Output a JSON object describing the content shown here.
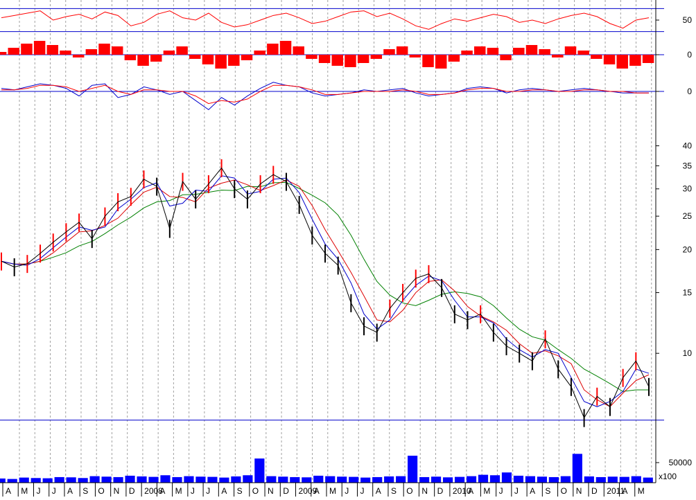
{
  "colors": {
    "price_up": "#ff0000",
    "price_down": "#000000",
    "ma_short": "#0000cc",
    "ma_mid": "#dd0000",
    "ma_long": "#008000",
    "reference_line": "#0000cc",
    "volume": "#0000ff",
    "oscillator": "#ff0000",
    "grid": "#a0a0a0"
  },
  "chart_data": [
    {
      "type": "line",
      "panel": "oscillator",
      "ytick_labels": [
        "50"
      ],
      "reference_levels": [
        30,
        70
      ],
      "series": [
        {
          "values": [
            54,
            58,
            62,
            66,
            50,
            56,
            60,
            52,
            64,
            58,
            40,
            46,
            60,
            66,
            54,
            50,
            62,
            46,
            38,
            42,
            50,
            58,
            62,
            54,
            44,
            48,
            56,
            64,
            66,
            56,
            62,
            52,
            40,
            34,
            44,
            52,
            48,
            54,
            60,
            56,
            46,
            50,
            44,
            52,
            58,
            62,
            56,
            44,
            36,
            50,
            54
          ]
        }
      ]
    },
    {
      "type": "bar",
      "panel": "histogram",
      "ytick_labels": [
        "0"
      ],
      "series": [
        {
          "values": [
            0.2,
            0.5,
            0.8,
            1.0,
            0.7,
            0.3,
            -0.2,
            0.4,
            0.8,
            0.6,
            -0.4,
            -0.8,
            -0.5,
            0.3,
            0.6,
            -0.3,
            -0.7,
            -1.0,
            -0.8,
            -0.4,
            0.3,
            0.8,
            1.0,
            0.6,
            -0.3,
            -0.6,
            -0.8,
            -0.9,
            -0.6,
            -0.3,
            0.4,
            0.6,
            -0.2,
            -0.9,
            -1.0,
            -0.5,
            0.3,
            0.6,
            0.5,
            -0.4,
            0.5,
            0.7,
            0.4,
            -0.2,
            0.6,
            0.3,
            -0.3,
            -0.7,
            -1.0,
            -0.8,
            -0.6
          ]
        }
      ]
    },
    {
      "type": "line",
      "panel": "momentum",
      "ytick_labels": [
        "0"
      ],
      "series": [
        {
          "values": [
            0.2,
            0.1,
            0.3,
            0.5,
            0.4,
            0.2,
            -0.3,
            0.4,
            0.5,
            -0.4,
            -0.2,
            0.3,
            0.1,
            -0.2,
            0.0,
            -0.6,
            -1.2,
            -0.4,
            -0.9,
            -0.3,
            0.2,
            0.6,
            0.4,
            0.3,
            -0.1,
            -0.3,
            -0.2,
            -0.1,
            0.1,
            0.0,
            0.1,
            0.2,
            -0.1,
            -0.3,
            -0.2,
            -0.1,
            0.2,
            0.3,
            0.2,
            -0.1,
            0.1,
            0.2,
            0.1,
            0.0,
            0.1,
            0.2,
            0.1,
            0.0,
            -0.1,
            -0.1,
            -0.1
          ]
        },
        {
          "values": [
            0.1,
            0.1,
            0.2,
            0.4,
            0.4,
            0.3,
            0.0,
            0.2,
            0.4,
            0.0,
            -0.2,
            0.1,
            0.1,
            0.0,
            0.0,
            -0.3,
            -0.8,
            -0.6,
            -0.7,
            -0.5,
            0.0,
            0.4,
            0.4,
            0.3,
            0.1,
            -0.2,
            -0.2,
            -0.1,
            0.0,
            0.0,
            0.0,
            0.1,
            0.0,
            -0.2,
            -0.2,
            -0.1,
            0.1,
            0.2,
            0.2,
            0.0,
            0.0,
            0.1,
            0.1,
            0.0,
            0.0,
            0.1,
            0.1,
            0.0,
            0.0,
            -0.1,
            -0.1
          ]
        }
      ]
    },
    {
      "type": "line",
      "panel": "price",
      "yscale": "log",
      "ytick_labels": [
        "40",
        "35",
        "30",
        "25",
        "20",
        "15",
        "10"
      ],
      "ytick_values": [
        40,
        35,
        30,
        25,
        20,
        15,
        10
      ],
      "reference_levels": [
        6.4
      ],
      "x_month_labels": [
        "A",
        "M",
        "J",
        "J",
        "A",
        "S",
        "O",
        "N",
        "D",
        "2008",
        "A",
        "M",
        "J",
        "J",
        "A",
        "S",
        "O",
        "N",
        "D",
        "2009",
        "A",
        "M",
        "J",
        "J",
        "A",
        "S",
        "O",
        "N",
        "D",
        "2010",
        "A",
        "M",
        "J",
        "J",
        "A",
        "S",
        "O",
        "N",
        "D",
        "2011",
        "A",
        "M"
      ],
      "series": [
        {
          "values": [
            18.5,
            17.8,
            18.2,
            19.5,
            21.0,
            22.5,
            24.0,
            21.5,
            25.0,
            27.5,
            28.5,
            32.0,
            30.5,
            23.0,
            31.5,
            28.0,
            31.0,
            34.5,
            30.0,
            28.0,
            31.0,
            33.0,
            31.5,
            27.0,
            22.0,
            19.5,
            18.0,
            14.0,
            12.0,
            11.5,
            13.5,
            15.0,
            16.5,
            17.0,
            15.5,
            13.0,
            12.5,
            13.0,
            11.5,
            10.5,
            10.0,
            9.5,
            11.0,
            9.0,
            8.0,
            6.5,
            7.5,
            7.0,
            8.5,
            9.5,
            8.0
          ]
        }
      ]
    },
    {
      "type": "bar",
      "panel": "volume",
      "ytick_labels": [
        "50000"
      ],
      "unit_label": "x100",
      "series": [
        {
          "values": [
            9000,
            8000,
            11000,
            10000,
            9500,
            12000,
            11500,
            10000,
            14000,
            13000,
            12000,
            15000,
            13500,
            12500,
            16000,
            12000,
            14000,
            13000,
            12500,
            11000,
            13500,
            16000,
            52000,
            14000,
            13000,
            12000,
            11500,
            15000,
            14000,
            13000,
            12500,
            11000,
            12000,
            13500,
            14000,
            58000,
            12000,
            13000,
            11500,
            12500,
            14000,
            17000,
            16000,
            22000,
            15000,
            14000,
            13000,
            12000,
            14000,
            62000,
            13500,
            12000,
            13000,
            12500,
            14000,
            11000
          ]
        }
      ]
    }
  ]
}
